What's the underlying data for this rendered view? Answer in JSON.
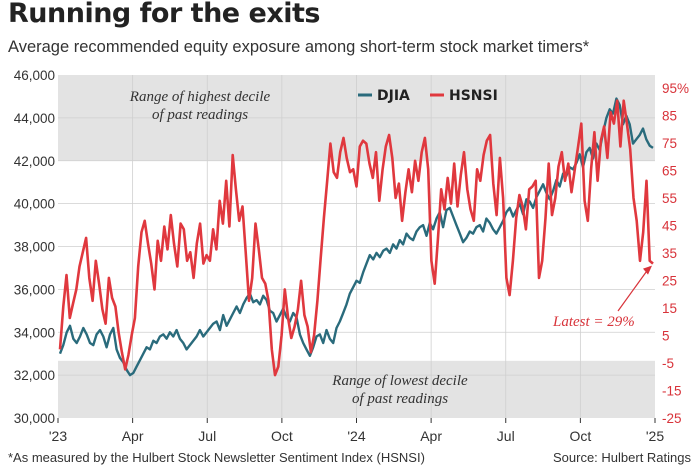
{
  "title": "Running for the exits",
  "subtitle": "Average recommended equity exposure among short-term stock market timers*",
  "footnote": "*As measured by the Hulbert Stock Newsletter Sentiment Index (HSNSI)",
  "source": "Source: Hulbert Ratings",
  "chart_data": {
    "type": "line",
    "x_ticks": [
      "'23",
      "Apr",
      "Jul",
      "Oct",
      "'24",
      "Apr",
      "Jul",
      "Oct",
      "'25"
    ],
    "x_range": [
      "2023-01",
      "2025-01"
    ],
    "left_axis": {
      "ticks": [
        "46,000",
        "44,000",
        "42,000",
        "40,000",
        "38,000",
        "36,000",
        "34,000",
        "32,000",
        "30,000"
      ],
      "range": [
        30000,
        46000
      ]
    },
    "right_axis": {
      "ticks": [
        "95%",
        "85",
        "75",
        "65",
        "55",
        "45",
        "35",
        "25",
        "15",
        "5",
        "-5",
        "-15",
        "-25"
      ],
      "range": [
        -25,
        95
      ]
    },
    "bands": [
      {
        "label_lines": [
          "Range of highest decile",
          "of past readings"
        ],
        "from": 65,
        "to": 95
      },
      {
        "label_lines": [
          "Range of lowest decile",
          "of past readings"
        ],
        "from": -25,
        "to": -5
      }
    ],
    "legend": {
      "placement": "top-center"
    },
    "series": [
      {
        "name": "DJIA",
        "axis": "left",
        "color": "#2a6b7c",
        "values": [
          33000,
          33400,
          34000,
          34300,
          33700,
          33500,
          33800,
          34200,
          33900,
          33500,
          33400,
          33900,
          34100,
          33800,
          33300,
          33900,
          34200,
          33200,
          32800,
          32600,
          32250,
          32000,
          32100,
          32400,
          32700,
          33000,
          33300,
          33200,
          33600,
          33500,
          33800,
          33900,
          33700,
          34000,
          33800,
          34100,
          33700,
          33500,
          33200,
          33400,
          33600,
          33800,
          34100,
          33800,
          34000,
          34200,
          34400,
          34500,
          34100,
          34800,
          34300,
          34600,
          34900,
          35200,
          34900,
          35300,
          35600,
          35800,
          35400,
          35500,
          35300,
          35700,
          35500,
          35000,
          34900,
          34500,
          34800,
          35100,
          34700,
          34500,
          34900,
          34700,
          33900,
          33500,
          33200,
          32900,
          33300,
          33800,
          33900,
          33500,
          34100,
          33700,
          33500,
          34200,
          34500,
          34900,
          35300,
          35800,
          36100,
          36400,
          36300,
          36800,
          37200,
          37600,
          37400,
          37700,
          37500,
          37800,
          37900,
          37700,
          38100,
          37900,
          38300,
          38100,
          38600,
          38400,
          38300,
          38700,
          38900,
          39000,
          38500,
          39100,
          38800,
          39300,
          39600,
          38900,
          39700,
          39800,
          39400,
          39000,
          38600,
          38200,
          38400,
          38700,
          38600,
          38900,
          39000,
          38700,
          39300,
          39100,
          38800,
          38600,
          38900,
          39200,
          39600,
          39800,
          39400,
          39700,
          40000,
          39500,
          40200,
          40100,
          39800,
          40300,
          40600,
          40900,
          40500,
          40200,
          40600,
          41100,
          40800,
          41400,
          41300,
          41700,
          41600,
          41900,
          42300,
          41700,
          42400,
          42600,
          42100,
          42800,
          42500,
          43300,
          44000,
          44400,
          44200,
          44900,
          44600,
          43700,
          44100,
          43700,
          42800,
          43000,
          43200,
          43500,
          43000,
          42700,
          42600
        ]
      },
      {
        "name": "HSNSI",
        "axis": "right",
        "color": "#e0383e",
        "values": [
          -1,
          14,
          25,
          10,
          15,
          20,
          28,
          33,
          38,
          24,
          16,
          30,
          22,
          13,
          8,
          24,
          17,
          14,
          5,
          -2,
          -8,
          -3,
          4,
          10,
          28,
          40,
          44,
          36,
          29,
          20,
          37,
          30,
          42,
          34,
          46,
          36,
          28,
          43,
          41,
          30,
          33,
          24,
          36,
          43,
          29,
          32,
          30,
          41,
          34,
          51,
          43,
          58,
          42,
          67,
          55,
          44,
          49,
          33,
          16,
          24,
          43,
          34,
          24,
          22,
          16,
          -1,
          -10,
          -7,
          4,
          20,
          10,
          3,
          7,
          13,
          23,
          11,
          7,
          -2,
          4,
          16,
          31,
          45,
          58,
          71,
          61,
          59,
          68,
          73,
          66,
          61,
          62,
          56,
          70,
          72,
          71,
          64,
          59,
          68,
          51,
          62,
          70,
          74,
          66,
          52,
          57,
          44,
          54,
          62,
          54,
          65,
          58,
          68,
          73,
          62,
          30,
          22,
          38,
          55,
          48,
          59,
          50,
          64,
          49,
          60,
          68,
          55,
          48,
          44,
          62,
          58,
          67,
          72,
          74,
          57,
          46,
          66,
          52,
          24,
          18,
          30,
          45,
          53,
          49,
          41,
          55,
          56,
          58,
          24,
          30,
          45,
          64,
          46,
          52,
          63,
          68,
          58,
          64,
          54,
          62,
          70,
          78,
          51,
          44,
          62,
          75,
          58,
          72,
          77,
          66,
          82,
          78,
          86,
          70,
          86,
          78,
          69,
          52,
          44,
          30,
          40,
          58,
          30,
          29
        ]
      }
    ],
    "annotations": [
      {
        "text": "Latest = 29%"
      }
    ]
  }
}
